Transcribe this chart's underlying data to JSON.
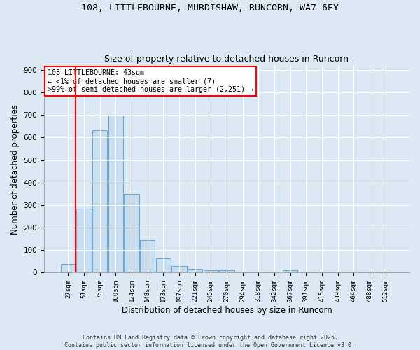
{
  "title1": "108, LITTLEBOURNE, MURDISHAW, RUNCORN, WA7 6EY",
  "title2": "Size of property relative to detached houses in Runcorn",
  "xlabel": "Distribution of detached houses by size in Runcorn",
  "ylabel": "Number of detached properties",
  "categories": [
    "27sqm",
    "51sqm",
    "76sqm",
    "100sqm",
    "124sqm",
    "148sqm",
    "173sqm",
    "197sqm",
    "221sqm",
    "245sqm",
    "270sqm",
    "294sqm",
    "318sqm",
    "342sqm",
    "367sqm",
    "391sqm",
    "415sqm",
    "439sqm",
    "464sqm",
    "488sqm",
    "512sqm"
  ],
  "values": [
    40,
    283,
    632,
    700,
    350,
    143,
    65,
    28,
    15,
    12,
    12,
    0,
    0,
    0,
    10,
    0,
    0,
    0,
    0,
    0,
    0
  ],
  "bar_color": "#c9ddf0",
  "bar_edge_color": "#6aaad4",
  "ylim": [
    0,
    920
  ],
  "yticks": [
    0,
    100,
    200,
    300,
    400,
    500,
    600,
    700,
    800,
    900
  ],
  "annotation_text_line1": "108 LITTLEBOURNE: 43sqm",
  "annotation_text_line2": "← <1% of detached houses are smaller (7)",
  "annotation_text_line3": ">99% of semi-detached houses are larger (2,251) →",
  "footer1": "Contains HM Land Registry data © Crown copyright and database right 2025.",
  "footer2": "Contains public sector information licensed under the Open Government Licence v3.0.",
  "bg_color": "#dce9f5",
  "plot_bg_color": "#dce9f5"
}
